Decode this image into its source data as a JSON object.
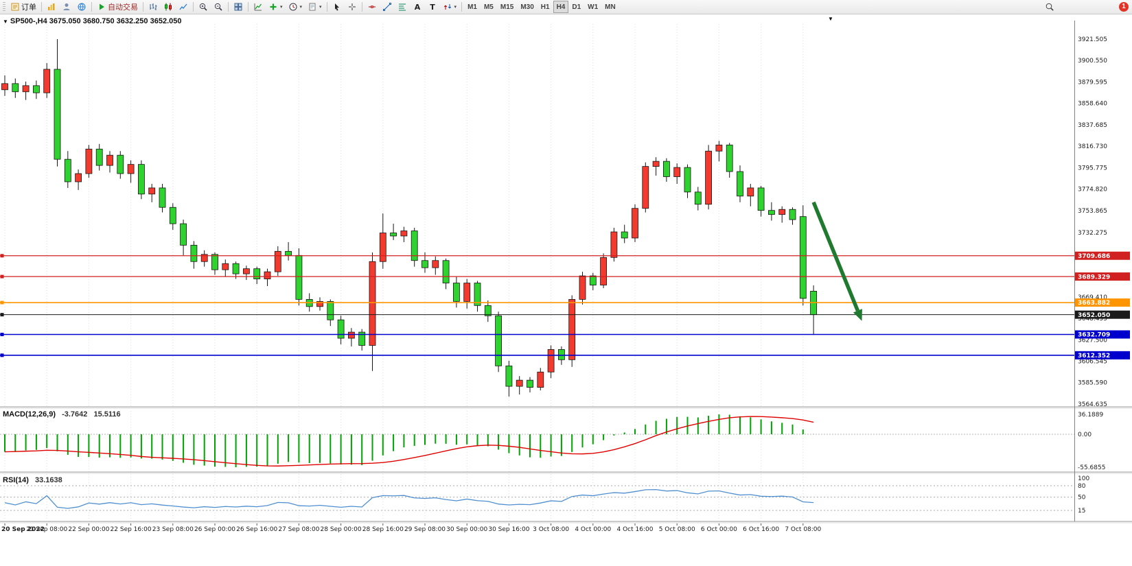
{
  "toolbar": {
    "groups": [
      {
        "items": [
          {
            "name": "new-order-button",
            "icon": "order-ticket-icon",
            "label": "订单"
          }
        ]
      },
      {
        "items": [
          {
            "name": "charts-button",
            "icon": "chart-gold-icon"
          },
          {
            "name": "profile-button",
            "icon": "person-icon"
          },
          {
            "name": "market-button",
            "icon": "globe-icon"
          }
        ]
      },
      {
        "items": [
          {
            "name": "auto-trading-button",
            "icon": "play-icon",
            "label": "自动交易",
            "label_color": "red"
          }
        ]
      },
      {
        "items": [
          {
            "name": "bar-chart-button",
            "icon": "bars-icon"
          },
          {
            "name": "candle-chart-button",
            "icon": "candles-icon"
          },
          {
            "name": "line-chart-button",
            "icon": "line-chart-icon"
          }
        ]
      },
      {
        "items": [
          {
            "name": "zoom-in-button",
            "icon": "zoom-in-icon"
          },
          {
            "name": "zoom-out-button",
            "icon": "zoom-out-icon"
          }
        ]
      },
      {
        "items": [
          {
            "name": "tile-windows-button",
            "icon": "tile-windows-icon"
          }
        ]
      },
      {
        "items": [
          {
            "name": "indicators-button",
            "icon": "indicator-icon"
          },
          {
            "name": "add-indicator-button",
            "icon": "add-indicator-icon",
            "caret": true
          },
          {
            "name": "periods-button",
            "icon": "clock-icon",
            "caret": true
          },
          {
            "name": "templates-button",
            "icon": "template-icon",
            "caret": true
          }
        ]
      },
      {
        "items": [
          {
            "name": "cursor-button",
            "icon": "cursor-icon"
          },
          {
            "name": "crosshair-button",
            "icon": "crosshair-icon"
          }
        ]
      },
      {
        "items": [
          {
            "name": "hline-button",
            "icon": "hline-icon"
          },
          {
            "name": "trendline-button",
            "icon": "trendline-icon"
          },
          {
            "name": "fibonacci-button",
            "icon": "fibonacci-icon"
          },
          {
            "name": "text-button",
            "icon": "text-icon"
          },
          {
            "name": "label-button",
            "icon": "label-icon"
          },
          {
            "name": "arrows-button",
            "icon": "arrows-icon",
            "caret": true
          }
        ]
      }
    ],
    "timeframes": [
      "M1",
      "M5",
      "M15",
      "M30",
      "H1",
      "H4",
      "D1",
      "W1",
      "MN"
    ],
    "active_timeframe": "H4",
    "notification_badge": "1"
  },
  "chart_data": {
    "type": "candlestick",
    "symbol": "SP500-",
    "timeframe": "H4",
    "title": "SP500-,H4  3675.050 3680.750 3632.250 3652.050",
    "ohlc_display": {
      "open": "3675.050",
      "high": "3680.750",
      "low": "3632.250",
      "close": "3652.050"
    },
    "candles": [
      [
        3872,
        3886,
        3866,
        3878
      ],
      [
        3878,
        3883,
        3864,
        3870
      ],
      [
        3870,
        3880,
        3862,
        3876
      ],
      [
        3876,
        3881,
        3863,
        3869
      ],
      [
        3869,
        3898,
        3864,
        3892
      ],
      [
        3892,
        3921.5,
        3797,
        3804
      ],
      [
        3804,
        3812,
        3776,
        3782
      ],
      [
        3782,
        3794,
        3774,
        3790
      ],
      [
        3790,
        3818,
        3786,
        3814
      ],
      [
        3814,
        3819,
        3793,
        3798
      ],
      [
        3798,
        3812,
        3791,
        3808
      ],
      [
        3808,
        3812,
        3785,
        3790
      ],
      [
        3790,
        3803,
        3781,
        3799
      ],
      [
        3799,
        3803,
        3765,
        3770
      ],
      [
        3770,
        3780,
        3762,
        3776
      ],
      [
        3776,
        3780,
        3752,
        3757
      ],
      [
        3757,
        3761,
        3735,
        3741
      ],
      [
        3741,
        3745,
        3710,
        3720
      ],
      [
        3720,
        3724,
        3697,
        3704
      ],
      [
        3704,
        3715,
        3699,
        3711
      ],
      [
        3711,
        3713,
        3691,
        3696
      ],
      [
        3696,
        3706,
        3689,
        3702
      ],
      [
        3702,
        3704,
        3687,
        3692
      ],
      [
        3692,
        3700,
        3686,
        3697
      ],
      [
        3697,
        3699,
        3682,
        3687
      ],
      [
        3687,
        3697,
        3680,
        3694
      ],
      [
        3694,
        3719,
        3690,
        3714
      ],
      [
        3714,
        3723,
        3705,
        3710
      ],
      [
        3710,
        3717,
        3661,
        3667
      ],
      [
        3667,
        3673,
        3655,
        3660
      ],
      [
        3660,
        3669,
        3656,
        3665
      ],
      [
        3665,
        3667,
        3641,
        3647
      ],
      [
        3647,
        3651,
        3623,
        3629
      ],
      [
        3629,
        3639,
        3621,
        3635
      ],
      [
        3635,
        3638,
        3617,
        3622
      ],
      [
        3622,
        3713,
        3597,
        3704
      ],
      [
        3704,
        3751,
        3697,
        3732
      ],
      [
        3732,
        3741,
        3725,
        3729
      ],
      [
        3729,
        3738,
        3723,
        3734
      ],
      [
        3734,
        3737,
        3699,
        3705
      ],
      [
        3705,
        3713,
        3693,
        3698
      ],
      [
        3698,
        3709,
        3691,
        3705
      ],
      [
        3705,
        3707,
        3677,
        3683
      ],
      [
        3683,
        3689,
        3659,
        3665
      ],
      [
        3665,
        3687,
        3658,
        3683
      ],
      [
        3683,
        3685,
        3655,
        3661
      ],
      [
        3661,
        3666,
        3645,
        3651
      ],
      [
        3651,
        3655,
        3596,
        3602
      ],
      [
        3602,
        3607,
        3572,
        3582
      ],
      [
        3582,
        3592,
        3574,
        3588
      ],
      [
        3588,
        3591,
        3576,
        3581
      ],
      [
        3581,
        3600,
        3578,
        3596
      ],
      [
        3596,
        3622,
        3590,
        3618
      ],
      [
        3618,
        3621,
        3603,
        3608
      ],
      [
        3608,
        3671,
        3601,
        3667
      ],
      [
        3667,
        3694,
        3662,
        3690
      ],
      [
        3690,
        3693,
        3676,
        3681
      ],
      [
        3681,
        3712,
        3678,
        3708
      ],
      [
        3708,
        3737,
        3704,
        3733
      ],
      [
        3733,
        3740,
        3722,
        3727
      ],
      [
        3727,
        3760,
        3723,
        3756
      ],
      [
        3756,
        3801,
        3752,
        3797
      ],
      [
        3797,
        3806,
        3788,
        3802
      ],
      [
        3802,
        3805,
        3782,
        3787
      ],
      [
        3787,
        3800,
        3780,
        3796
      ],
      [
        3796,
        3799,
        3766,
        3772
      ],
      [
        3772,
        3777,
        3754,
        3760
      ],
      [
        3760,
        3818,
        3755,
        3812
      ],
      [
        3812,
        3822,
        3802,
        3818
      ],
      [
        3818,
        3820,
        3786,
        3792
      ],
      [
        3792,
        3798,
        3762,
        3768
      ],
      [
        3768,
        3780,
        3758,
        3776
      ],
      [
        3776,
        3778,
        3748,
        3754
      ],
      [
        3754,
        3762,
        3744,
        3750
      ],
      [
        3750,
        3758,
        3742,
        3755
      ],
      [
        3755,
        3757,
        3740,
        3745
      ],
      [
        3748,
        3759,
        3661,
        3668
      ],
      [
        3675.05,
        3680.75,
        3632.25,
        3652.05
      ]
    ],
    "time_labels": [
      "20 Sep 2022",
      "21 Sep 08:00",
      "22 Sep 00:00",
      "22 Sep 16:00",
      "23 Sep 08:00",
      "26 Sep 00:00",
      "26 Sep 16:00",
      "27 Sep 08:00",
      "28 Sep 00:00",
      "28 Sep 16:00",
      "29 Sep 08:00",
      "30 Sep 00:00",
      "30 Sep 16:00",
      "3 Oct 08:00",
      "4 Oct 00:00",
      "4 Oct 16:00",
      "5 Oct 08:00",
      "6 Oct 00:00",
      "6 Oct 16:00",
      "7 Oct 08:00"
    ],
    "price_ticks": [
      "3921.505",
      "3900.550",
      "3879.595",
      "3858.640",
      "3837.685",
      "3816.730",
      "3795.775",
      "3774.820",
      "3753.865",
      "3732.275",
      "3711.320",
      "3690.365",
      "3669.410",
      "3648.455",
      "3627.500",
      "3606.545",
      "3585.590",
      "3564.635"
    ],
    "levels": [
      {
        "price": 3709.686,
        "label": "3709.686",
        "color": "#d02020",
        "width": 1.2
      },
      {
        "price": 3689.329,
        "label": "3689.329",
        "color": "#d02020",
        "width": 1.2
      },
      {
        "price": 3663.882,
        "label": "3663.882",
        "color": "#ff9500",
        "width": 1.6
      },
      {
        "price": 3652.05,
        "label": "3652.050",
        "color": "#1a1a1a",
        "width": 1.0,
        "current": true
      },
      {
        "price": 3632.709,
        "label": "3632.709",
        "color": "#0000cd",
        "width": 1.6
      },
      {
        "price": 3612.352,
        "label": "3612.352",
        "color": "#0000cd",
        "width": 1.6
      }
    ],
    "arrow": {
      "from_index": 77,
      "from_price": 3762,
      "to_index": 81.6,
      "to_price": 3646,
      "color": "#1f7a2f"
    },
    "colors": {
      "bull": "#f23b2e",
      "bear": "#2fd32f",
      "outline": "#151515",
      "grid": "#dcdcdc",
      "axis_text": "#1a1a1a"
    }
  },
  "macd": {
    "label": "MACD(12,26,9)",
    "value_main": "-3.7642",
    "value_signal": "15.5116",
    "axis_labels": [
      "36.1889",
      "0.00",
      "-55.6855"
    ],
    "colors": {
      "histogram": "#00a400",
      "signal": "#e00000"
    }
  },
  "rsi": {
    "label": "RSI(14)",
    "value": "33.1638",
    "axis_labels": [
      "100",
      "80",
      "50",
      "15"
    ],
    "levels": [
      80,
      50,
      15
    ],
    "color": "#4f8fd0"
  }
}
